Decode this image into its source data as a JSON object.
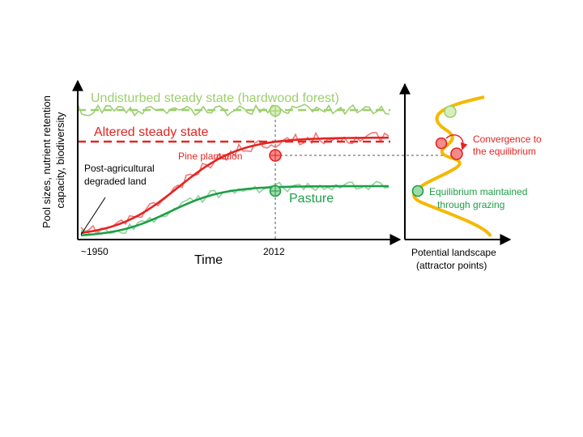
{
  "colors": {
    "forest": "#9ccf6e",
    "altered": "#e52421",
    "altered_light": "#f0787a",
    "pasture": "#1e9e48",
    "pasture_light": "#8fd39a",
    "landscape": "#f5b800",
    "axis": "#000000",
    "guide": "#555555"
  },
  "labels": {
    "y_axis_line1": "Pool sizes, nutrient retention",
    "y_axis_line2": "capacity, biodiversity",
    "x_axis": "Time",
    "tick_start": "~1950",
    "tick_2012": "2012",
    "undisturbed": "Undisturbed steady state (hardwood forest)",
    "altered": "Altered steady state",
    "pine": "Pine plantation",
    "pasture": "Pasture",
    "degraded_line1": "Post-agricultural",
    "degraded_line2": "degraded land",
    "landscape_line1": "Potential landscape",
    "landscape_line2": "(attractor points)",
    "convergence_line1": "Convergence to",
    "convergence_line2": "the equilibrium",
    "equilibrium_line1": "Equilibrium maintained",
    "equilibrium_line2": "through grazing"
  }
}
